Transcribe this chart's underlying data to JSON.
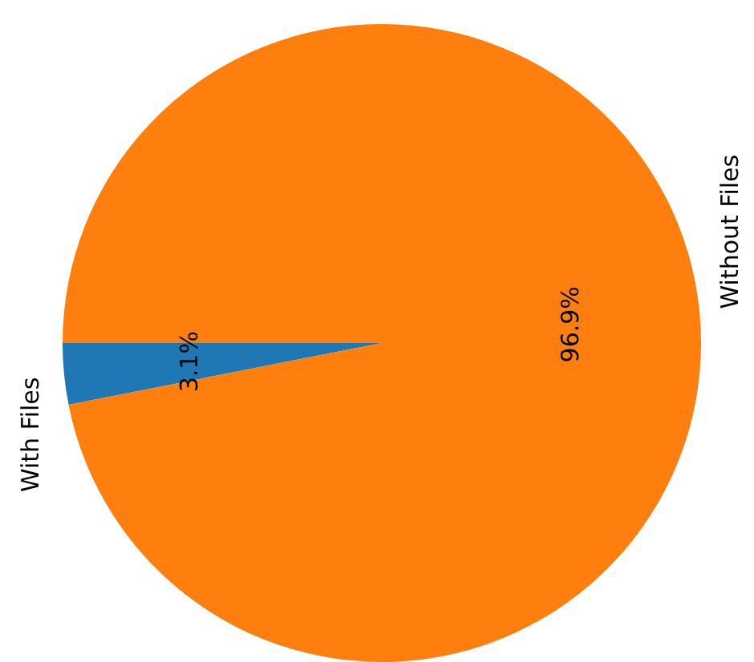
{
  "chart_data": {
    "type": "pie",
    "categories": [
      "With Files",
      "Without Files"
    ],
    "values": [
      3.1,
      96.9
    ],
    "colors": [
      "#1f77b4",
      "#ff7f0e"
    ],
    "value_labels": [
      "3.1%",
      "96.9%"
    ]
  }
}
